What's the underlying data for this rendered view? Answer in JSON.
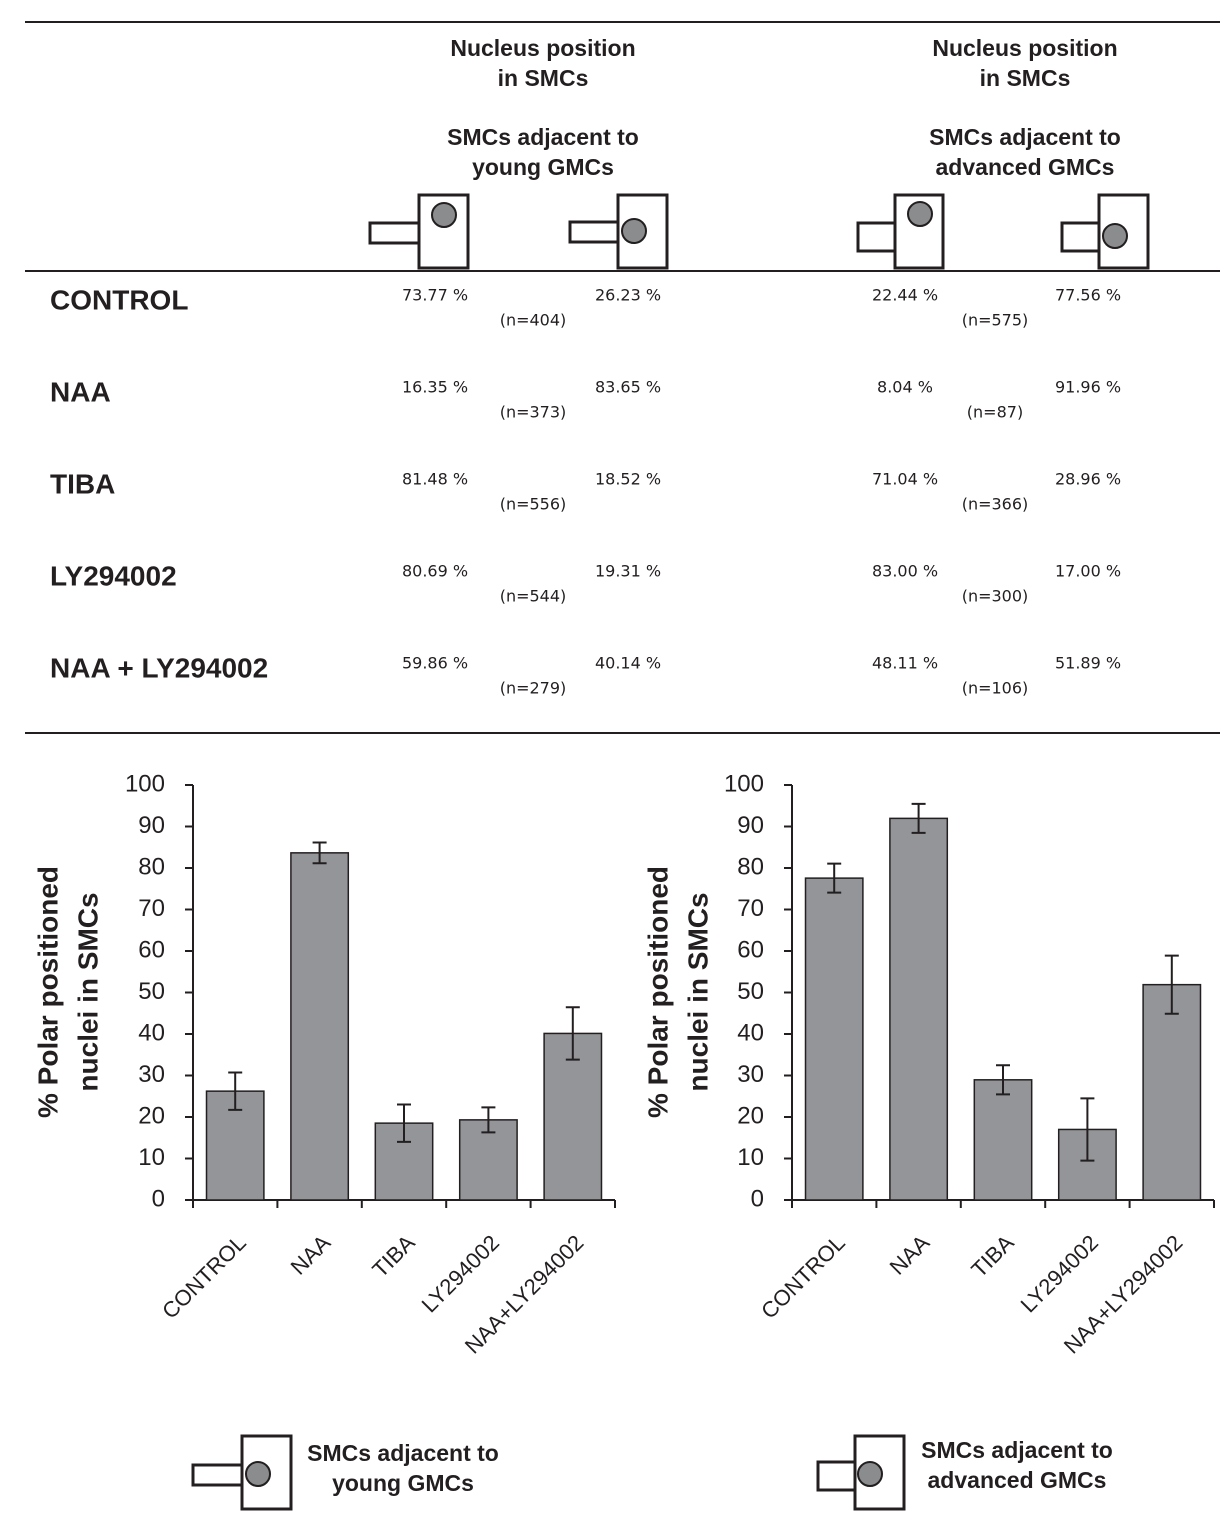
{
  "table": {
    "groups": [
      {
        "title": [
          "Nucleus position",
          "in SMCs"
        ],
        "subtitle": [
          "SMCs adjacent to",
          "young GMCs"
        ]
      },
      {
        "title": [
          "Nucleus position",
          "in SMCs"
        ],
        "subtitle": [
          "SMCs adjacent to",
          "advanced GMCs"
        ]
      }
    ],
    "rows": [
      {
        "label": "CONTROL",
        "cells": [
          {
            "a": "73.77 %",
            "n": "(n=404)",
            "b": "26.23 %"
          },
          {
            "a": "22.44 %",
            "n": "(n=575)",
            "b": "77.56 %"
          }
        ]
      },
      {
        "label": "NAA",
        "cells": [
          {
            "a": "16.35 %",
            "n": "(n=373)",
            "b": "83.65 %"
          },
          {
            "a": "8.04 %",
            "n": "(n=87)",
            "b": "91.96 %"
          }
        ]
      },
      {
        "label": "TIBA",
        "cells": [
          {
            "a": "81.48 %",
            "n": "(n=556)",
            "b": "18.52 %"
          },
          {
            "a": "71.04 %",
            "n": "(n=366)",
            "b": "28.96 %"
          }
        ]
      },
      {
        "label": "LY294002",
        "cells": [
          {
            "a": "80.69 %",
            "n": "(n=544)",
            "b": "19.31 %"
          },
          {
            "a": "83.00 %",
            "n": "(n=300)",
            "b": "17.00 %"
          }
        ]
      },
      {
        "label": "NAA + LY294002",
        "cells": [
          {
            "a": "59.86 %",
            "n": "(n=279)",
            "b": "40.14 %"
          },
          {
            "a": "48.11 %",
            "n": "(n=106)",
            "b": "51.89 %"
          }
        ]
      }
    ]
  },
  "chart_data": [
    {
      "type": "bar",
      "ylabel": [
        "%  Polar positioned",
        "nuclei in SMCs"
      ],
      "categories": [
        "CONTROL",
        "NAA",
        "TIBA",
        "LY294002",
        "NAA+LY294002"
      ],
      "values": [
        26.23,
        83.65,
        18.52,
        19.31,
        40.14
      ],
      "errors": [
        4.5,
        2.5,
        4.5,
        3,
        6.3
      ],
      "color": "#939598",
      "ylim": [
        0,
        100
      ],
      "yticks": [
        0,
        10,
        20,
        30,
        40,
        50,
        60,
        70,
        80,
        90,
        100
      ],
      "legend": [
        "SMCs adjacent to",
        "young GMCs"
      ]
    },
    {
      "type": "bar",
      "ylabel": [
        "%  Polar positioned",
        "nuclei in SMCs"
      ],
      "categories": [
        "CONTROL",
        "NAA",
        "TIBA",
        "LY294002",
        "NAA+LY294002"
      ],
      "values": [
        77.56,
        91.96,
        28.96,
        17.0,
        51.89
      ],
      "errors": [
        3.5,
        3.5,
        3.5,
        7.5,
        7
      ],
      "color": "#939598",
      "ylim": [
        0,
        100
      ],
      "yticks": [
        0,
        10,
        20,
        30,
        40,
        50,
        60,
        70,
        80,
        90,
        100
      ],
      "legend": [
        "SMCs adjacent to",
        "advanced GMCs"
      ]
    }
  ]
}
